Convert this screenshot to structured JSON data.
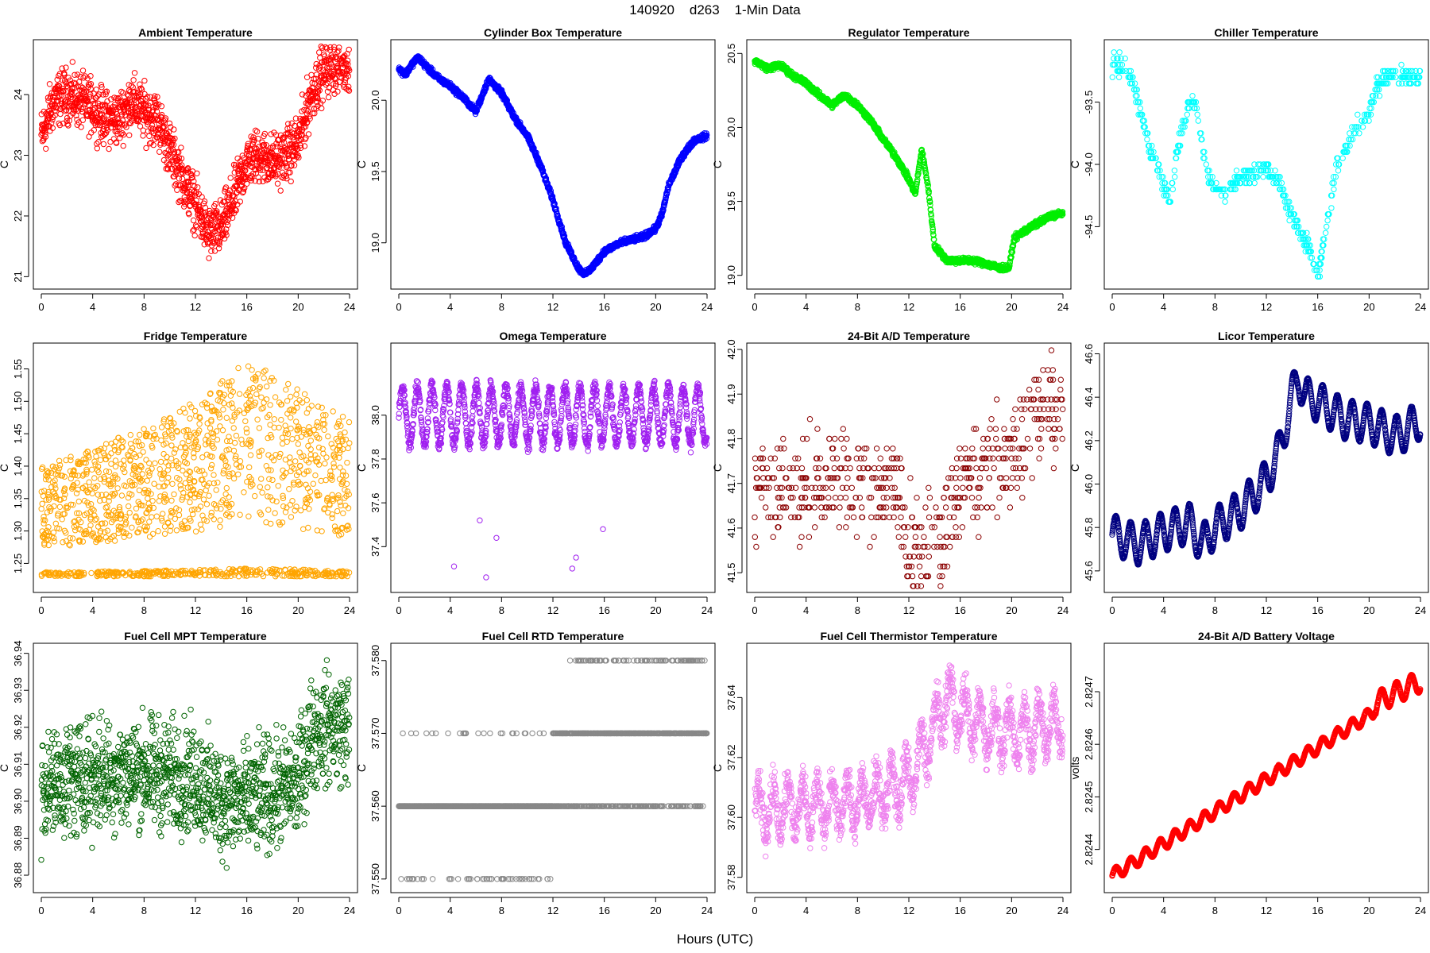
{
  "figure_title": "140920    d263    1-Min Data",
  "x_axis_label": "Hours (UTC)",
  "chart_data": [
    {
      "type": "scatter",
      "title": "Ambient Temperature",
      "ylabel": "C",
      "color": "#ff0000",
      "xlim": [
        0,
        24
      ],
      "ylim": [
        20.9,
        24.8
      ],
      "xticks": [
        "0",
        "4",
        "8",
        "12",
        "16",
        "20",
        "24"
      ],
      "yticks": [
        {
          "v": 21,
          "label": "21"
        },
        {
          "v": 22,
          "label": "22"
        },
        {
          "v": 23,
          "label": "23"
        },
        {
          "v": 24,
          "label": "24"
        }
      ],
      "x": [
        0,
        1,
        2,
        3,
        4,
        5,
        6,
        7,
        8,
        9,
        10,
        11,
        12,
        13,
        14,
        15,
        16,
        17,
        18,
        19,
        20,
        21,
        22,
        23,
        24
      ],
      "y": [
        23.3,
        23.9,
        24.0,
        23.9,
        23.8,
        23.6,
        23.6,
        23.9,
        23.7,
        23.6,
        23.1,
        22.6,
        22.2,
        21.7,
        21.8,
        22.3,
        22.9,
        23.0,
        22.9,
        23.0,
        23.2,
        24.0,
        24.4,
        24.5,
        24.5
      ],
      "spread": 0.65
    },
    {
      "type": "scatter",
      "title": "Cylinder Box Temperature",
      "ylabel": "C",
      "color": "#0000ff",
      "xlim": [
        0,
        24
      ],
      "ylim": [
        18.72,
        20.38
      ],
      "xticks": [
        "0",
        "4",
        "8",
        "12",
        "16",
        "20",
        "24"
      ],
      "yticks": [
        {
          "v": 19.0,
          "label": "19.0"
        },
        {
          "v": 19.5,
          "label": "19.5"
        },
        {
          "v": 20.0,
          "label": "20.0"
        }
      ],
      "x": [
        0,
        0.5,
        1,
        1.5,
        2,
        3,
        4,
        5,
        6,
        7,
        8,
        9,
        10,
        11,
        12,
        13,
        14,
        14.5,
        15,
        16,
        17,
        18,
        19,
        20,
        20.5,
        21,
        22,
        23,
        24
      ],
      "y": [
        20.22,
        20.18,
        20.25,
        20.3,
        20.25,
        20.16,
        20.1,
        20.02,
        19.92,
        20.15,
        20.05,
        19.88,
        19.75,
        19.55,
        19.3,
        19.0,
        18.82,
        18.78,
        18.82,
        18.94,
        18.99,
        19.02,
        19.04,
        19.1,
        19.2,
        19.4,
        19.6,
        19.72,
        19.75
      ],
      "spread": 0.03
    },
    {
      "type": "scatter",
      "title": "Regulator Temperature",
      "ylabel": "C",
      "color": "#00ee00",
      "xlim": [
        0,
        24
      ],
      "ylim": [
        18.95,
        20.55
      ],
      "xticks": [
        "0",
        "4",
        "8",
        "12",
        "16",
        "20",
        "24"
      ],
      "yticks": [
        {
          "v": 19.0,
          "label": "19.0"
        },
        {
          "v": 19.5,
          "label": "19.5"
        },
        {
          "v": 20.0,
          "label": "20.0"
        },
        {
          "v": 20.5,
          "label": "20.5"
        }
      ],
      "x": [
        0,
        1,
        2,
        3,
        4,
        5,
        6,
        7,
        8,
        9,
        10,
        11,
        12,
        12.5,
        13,
        13.5,
        14,
        15,
        16,
        17,
        18,
        19,
        19.8,
        20.2,
        21,
        22,
        23,
        24
      ],
      "y": [
        20.45,
        20.4,
        20.42,
        20.35,
        20.3,
        20.22,
        20.15,
        20.22,
        20.15,
        20.05,
        19.92,
        19.8,
        19.65,
        19.55,
        19.85,
        19.6,
        19.2,
        19.1,
        19.1,
        19.1,
        19.08,
        19.05,
        19.05,
        19.25,
        19.3,
        19.35,
        19.4,
        19.42
      ],
      "spread": 0.03
    },
    {
      "type": "scatter",
      "title": "Chiller Temperature",
      "ylabel": "C",
      "color": "#00ffff",
      "xlim": [
        0,
        24
      ],
      "ylim": [
        -94.95,
        -93.05
      ],
      "xticks": [
        "0",
        "4",
        "8",
        "12",
        "16",
        "20",
        "24"
      ],
      "yticks": [
        {
          "v": -93.5,
          "label": "-93.5"
        },
        {
          "v": -94.0,
          "label": "-94.0"
        },
        {
          "v": -94.5,
          "label": "-94.5"
        }
      ],
      "x": [
        0,
        1,
        1.5,
        2,
        2.5,
        3,
        3.5,
        4,
        4.5,
        5,
        5.5,
        6,
        6.5,
        7,
        7.5,
        8,
        9,
        10,
        11,
        12,
        12.5,
        13,
        13.5,
        14,
        14.5,
        15,
        15.5,
        16,
        16.5,
        17,
        17.5,
        18,
        19,
        20,
        20.5,
        21,
        22,
        23,
        24
      ],
      "y": [
        -93.2,
        -93.2,
        -93.3,
        -93.5,
        -93.7,
        -93.9,
        -94.0,
        -94.2,
        -94.3,
        -93.9,
        -93.7,
        -93.5,
        -93.5,
        -93.8,
        -94.1,
        -94.2,
        -94.2,
        -94.1,
        -94.1,
        -94.0,
        -94.1,
        -94.1,
        -94.3,
        -94.4,
        -94.5,
        -94.6,
        -94.7,
        -94.9,
        -94.6,
        -94.3,
        -94.0,
        -93.9,
        -93.7,
        -93.6,
        -93.4,
        -93.3,
        -93.3,
        -93.3,
        -93.3
      ],
      "spread": 0.1,
      "step": 0.05
    },
    {
      "type": "scatter",
      "title": "Fridge Temperature",
      "ylabel": "C",
      "color": "#ffa500",
      "xlim": [
        0,
        24
      ],
      "ylim": [
        1.215,
        1.58
      ],
      "xticks": [
        "0",
        "4",
        "8",
        "12",
        "16",
        "20",
        "24"
      ],
      "yticks": [
        {
          "v": 1.25,
          "label": "1.25"
        },
        {
          "v": 1.3,
          "label": "1.30"
        },
        {
          "v": 1.35,
          "label": "1.35"
        },
        {
          "v": 1.4,
          "label": "1.40"
        },
        {
          "v": 1.45,
          "label": "1.45"
        },
        {
          "v": 1.5,
          "label": "1.50"
        },
        {
          "v": 1.55,
          "label": "1.55"
        }
      ],
      "x": [
        0,
        4,
        8,
        12,
        16,
        20,
        24
      ],
      "y": [
        1.32,
        1.33,
        1.35,
        1.38,
        1.4,
        1.37,
        1.35
      ],
      "upper": [
        1.4,
        1.43,
        1.46,
        1.5,
        1.57,
        1.52,
        1.47
      ],
      "lower": [
        1.23,
        1.23,
        1.23,
        1.23,
        1.23,
        1.23,
        1.23
      ],
      "mode": "band"
    },
    {
      "type": "scatter",
      "title": "Omega Temperature",
      "ylabel": "C",
      "color": "#a020f0",
      "xlim": [
        0,
        24
      ],
      "ylim": [
        37.22,
        38.3
      ],
      "xticks": [
        "0",
        "4",
        "8",
        "12",
        "16",
        "20",
        "24"
      ],
      "yticks": [
        {
          "v": 37.4,
          "label": "37.4"
        },
        {
          "v": 37.6,
          "label": "37.6"
        },
        {
          "v": 37.8,
          "label": "37.8"
        },
        {
          "v": 38.0,
          "label": "38.0"
        }
      ],
      "x": [
        0,
        4,
        8,
        12,
        16,
        20,
        21,
        22,
        23,
        24
      ],
      "y": [
        38.0,
        38.0,
        38.0,
        38.0,
        38.0,
        38.0,
        38.0,
        38.0,
        38.0,
        38.0
      ],
      "amp": 0.13,
      "spread": 0.05,
      "outliers": [
        [
          4.3,
          37.31
        ],
        [
          6.3,
          37.52
        ],
        [
          6.8,
          37.26
        ],
        [
          7.6,
          37.44
        ],
        [
          13.5,
          37.3
        ],
        [
          13.8,
          37.35
        ],
        [
          15.9,
          37.48
        ]
      ]
    },
    {
      "type": "scatter",
      "title": "24-Bit A/D Temperature",
      "ylabel": "C",
      "color": "#8b0000",
      "xlim": [
        0,
        24
      ],
      "ylim": [
        41.47,
        42.0
      ],
      "xticks": [
        "0",
        "4",
        "8",
        "12",
        "16",
        "20",
        "24"
      ],
      "yticks": [
        {
          "v": 41.5,
          "label": "41.5"
        },
        {
          "v": 41.6,
          "label": "41.6"
        },
        {
          "v": 41.7,
          "label": "41.7"
        },
        {
          "v": 41.8,
          "label": "41.8"
        },
        {
          "v": 41.9,
          "label": "41.9"
        },
        {
          "v": 42.0,
          "label": "42.0"
        }
      ],
      "x": [
        0,
        4,
        8,
        11,
        12,
        13,
        14,
        15,
        16,
        20,
        21,
        22,
        23,
        24
      ],
      "y": [
        41.68,
        41.7,
        41.7,
        41.68,
        41.56,
        41.55,
        41.56,
        41.62,
        41.72,
        41.76,
        41.82,
        41.86,
        41.86,
        41.88
      ],
      "spread": 0.18,
      "step": 0.022
    },
    {
      "type": "scatter",
      "title": "Licor Temperature",
      "ylabel": "C",
      "color": "#000080",
      "xlim": [
        0,
        24
      ],
      "ylim": [
        45.53,
        46.62
      ],
      "xticks": [
        "0",
        "4",
        "8",
        "12",
        "16",
        "20",
        "24"
      ],
      "yticks": [
        {
          "v": 45.6,
          "label": "45.6"
        },
        {
          "v": 45.8,
          "label": "45.8"
        },
        {
          "v": 46.0,
          "label": "46.0"
        },
        {
          "v": 46.2,
          "label": "46.2"
        },
        {
          "v": 46.4,
          "label": "46.4"
        },
        {
          "v": 46.6,
          "label": "46.6"
        }
      ],
      "x": [
        0,
        2,
        4,
        6,
        7,
        8,
        10,
        12,
        13,
        14,
        14.5,
        15,
        16,
        18,
        20,
        21,
        22,
        23,
        24
      ],
      "y": [
        45.77,
        45.72,
        45.78,
        45.82,
        45.72,
        45.8,
        45.88,
        46.02,
        46.15,
        46.4,
        46.5,
        46.4,
        46.38,
        46.3,
        46.28,
        46.25,
        46.22,
        46.25,
        46.3
      ],
      "amp": 0.09,
      "spread": 0.005
    },
    {
      "type": "scatter",
      "title": "Fuel Cell MPT Temperature",
      "ylabel": "C",
      "color": "#006400",
      "xlim": [
        0,
        24
      ],
      "ylim": [
        36.877,
        36.941
      ],
      "xticks": [
        "0",
        "4",
        "8",
        "12",
        "16",
        "20",
        "24"
      ],
      "yticks": [
        {
          "v": 36.88,
          "label": "36.88"
        },
        {
          "v": 36.89,
          "label": "36.89"
        },
        {
          "v": 36.9,
          "label": "36.90"
        },
        {
          "v": 36.91,
          "label": "36.91"
        },
        {
          "v": 36.92,
          "label": "36.92"
        },
        {
          "v": 36.93,
          "label": "36.93"
        },
        {
          "v": 36.94,
          "label": "36.94"
        }
      ],
      "x": [
        0,
        4,
        8,
        12,
        14,
        16,
        18,
        20,
        21,
        22,
        24
      ],
      "y": [
        36.904,
        36.907,
        36.908,
        36.906,
        36.9,
        36.9,
        36.902,
        36.905,
        36.918,
        36.92,
        36.92
      ],
      "spread": 0.022
    },
    {
      "type": "scatter",
      "title": "Fuel Cell RTD Temperature",
      "ylabel": "C",
      "color": "#888888",
      "xlim": [
        0,
        24
      ],
      "ylim": [
        37.549,
        37.5815
      ],
      "xticks": [
        "0",
        "4",
        "8",
        "12",
        "16",
        "20",
        "24"
      ],
      "yticks": [
        {
          "v": 37.55,
          "label": "37.550"
        },
        {
          "v": 37.56,
          "label": "37.560"
        },
        {
          "v": 37.57,
          "label": "37.570"
        },
        {
          "v": 37.58,
          "label": "37.580"
        }
      ],
      "levels": [
        37.55,
        37.56,
        37.57,
        37.58
      ],
      "mode": "levels"
    },
    {
      "type": "scatter",
      "title": "Fuel Cell Thermistor Temperature",
      "ylabel": "C",
      "color": "#ee82ee",
      "xlim": [
        0,
        24
      ],
      "ylim": [
        37.577,
        37.656
      ],
      "xticks": [
        "0",
        "4",
        "8",
        "12",
        "16",
        "20",
        "24"
      ],
      "yticks": [
        {
          "v": 37.58,
          "label": "37.58"
        },
        {
          "v": 37.6,
          "label": "37.60"
        },
        {
          "v": 37.62,
          "label": "37.62"
        },
        {
          "v": 37.64,
          "label": "37.64"
        }
      ],
      "x": [
        0,
        4,
        8,
        12,
        14,
        15,
        16,
        18,
        20,
        22,
        24
      ],
      "y": [
        37.602,
        37.604,
        37.605,
        37.612,
        37.63,
        37.64,
        37.635,
        37.63,
        37.628,
        37.63,
        37.632
      ],
      "amp": 0.008,
      "spread": 0.01
    },
    {
      "type": "scatter",
      "title": "24-Bit A/D Battery Voltage",
      "ylabel": "volts",
      "color": "#ff0000",
      "xlim": [
        0,
        24
      ],
      "ylim": [
        2.82433,
        2.82478
      ],
      "xticks": [
        "0",
        "4",
        "8",
        "12",
        "16",
        "20",
        "24"
      ],
      "yticks": [
        {
          "v": 2.8244,
          "label": "2.8244"
        },
        {
          "v": 2.8245,
          "label": "2.8245"
        },
        {
          "v": 2.8246,
          "label": "2.8246"
        },
        {
          "v": 2.8247,
          "label": "2.8247"
        }
      ],
      "x": [
        0,
        20.3,
        20.6,
        24
      ],
      "y": [
        2.82435,
        2.82466,
        2.82468,
        2.82472
      ],
      "amp": 1.2e-05,
      "spread": 1.5e-06,
      "amp_late": 2e-05
    }
  ]
}
